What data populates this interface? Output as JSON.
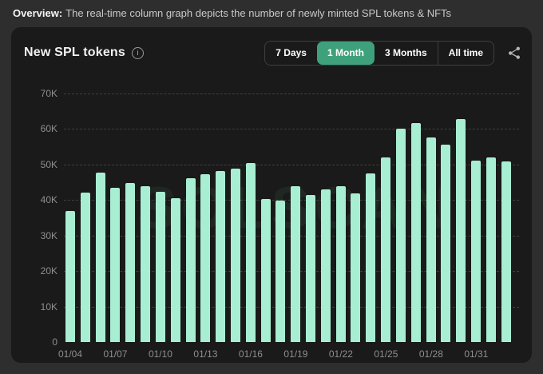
{
  "page": {
    "overview_label": "Overview:",
    "overview_text": "The real-time column graph depicts the number of newly minted SPL tokens & NFTs"
  },
  "card": {
    "title": "New SPL tokens",
    "info_icon": "info-circle-icon",
    "share_icon": "share-nodes-icon",
    "watermark": "SOLSCAN",
    "time_ranges": [
      {
        "label": "7 Days",
        "active": false
      },
      {
        "label": "1 Month",
        "active": true
      },
      {
        "label": "3 Months",
        "active": false
      },
      {
        "label": "All time",
        "active": false
      }
    ]
  },
  "colors": {
    "page_bg": "#2e2e2e",
    "card_bg": "#191a19",
    "bar_mint": "#a8eed2",
    "accent_green": "#3fa17c",
    "axis_text": "#8f8f8f"
  },
  "chart_data": {
    "type": "bar",
    "title": "New SPL tokens",
    "xlabel": "",
    "ylabel": "",
    "ylim": [
      0,
      70000
    ],
    "grid": "horizontal-dashed",
    "legend": "none",
    "x": [
      "01/04",
      "01/05",
      "01/06",
      "01/07",
      "01/08",
      "01/09",
      "01/10",
      "01/11",
      "01/12",
      "01/13",
      "01/14",
      "01/15",
      "01/16",
      "01/17",
      "01/18",
      "01/19",
      "01/20",
      "01/21",
      "01/22",
      "01/23",
      "01/24",
      "01/25",
      "01/26",
      "01/27",
      "01/28",
      "01/29",
      "01/30",
      "01/31",
      "02/01",
      "02/02"
    ],
    "values": [
      37000,
      42000,
      47800,
      43500,
      44700,
      43800,
      42400,
      40500,
      46200,
      47300,
      48200,
      48800,
      50400,
      40300,
      39800,
      43800,
      41400,
      43100,
      44000,
      41800,
      47600,
      51900,
      60000,
      61700,
      57700,
      55600,
      62900,
      51000,
      51900,
      50900
    ],
    "y_ticks": [
      "70K",
      "60K",
      "50K",
      "40K",
      "30K",
      "20K",
      "10K",
      "0"
    ],
    "y_tick_values": [
      70000,
      60000,
      50000,
      40000,
      30000,
      20000,
      10000,
      0
    ],
    "x_tick_labels": [
      "01/04",
      "01/07",
      "01/10",
      "01/13",
      "01/16",
      "01/19",
      "01/22",
      "01/25",
      "01/28",
      "01/31"
    ],
    "x_tick_every": 3
  }
}
